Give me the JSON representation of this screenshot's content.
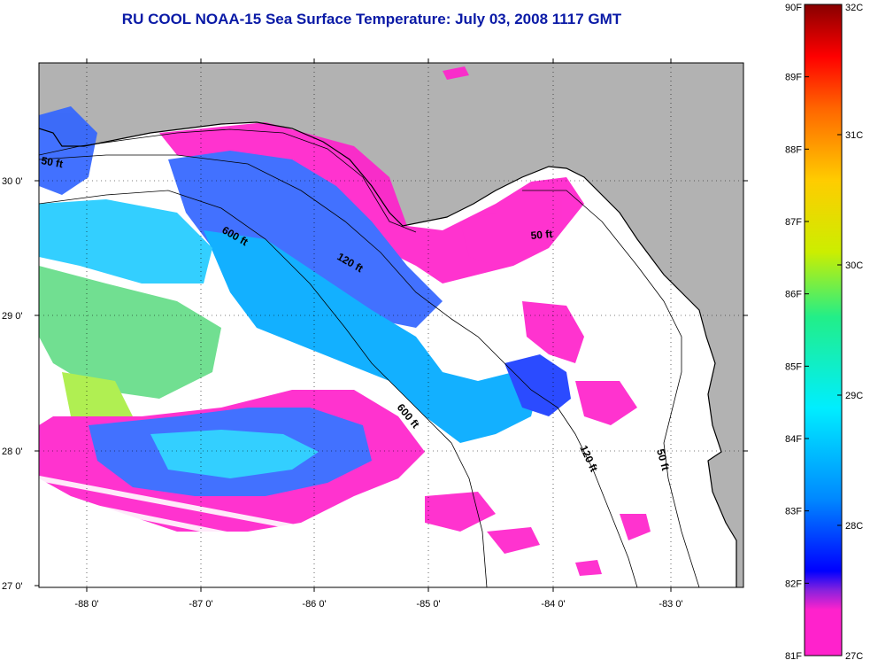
{
  "title": "RU COOL  NOAA-15  Sea Surface Temperature:  July 03, 2008 1117 GMT",
  "colors": {
    "land": "#b2b2b2",
    "title": "#0a1aa6",
    "no_data": "#ffffff"
  },
  "longitude_labels": [
    "-88 0'",
    "-87 0'",
    "-86 0'",
    "-85 0'",
    "-84 0'",
    "-83 0'"
  ],
  "latitude_labels": [
    "30 0'",
    "29 0'",
    "28 0'",
    "27 0'"
  ],
  "contour_labels": {
    "c50_west": "50 ft",
    "c600_north": "600 ft",
    "c120_north": "120 ft",
    "c50_east": "50 ft",
    "c600_south": "600 ft",
    "c120_south": "120 ft",
    "c50_south": "50 ft"
  },
  "colorbar": {
    "fahrenheit_labels": [
      "90F",
      "89F",
      "88F",
      "87F",
      "86F",
      "85F",
      "84F",
      "83F",
      "82F",
      "81F"
    ],
    "celsius_labels": [
      "32C",
      "31C",
      "30C",
      "29C",
      "28C",
      "27C"
    ],
    "gradient": [
      "#ff22cc",
      "#8822dd",
      "#0000ff",
      "#0088ff",
      "#00eeff",
      "#22ee88",
      "#ccee00",
      "#ffcc00",
      "#ff6600",
      "#ff0000",
      "#880000"
    ]
  }
}
